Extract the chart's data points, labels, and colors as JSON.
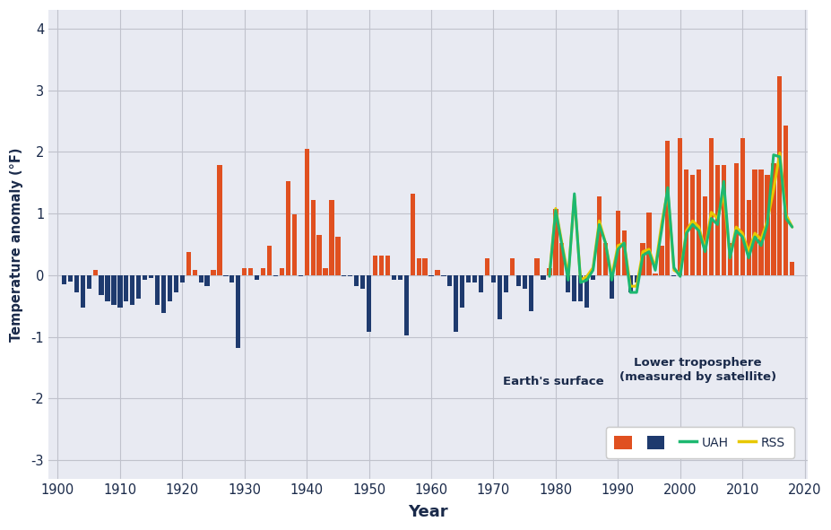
{
  "ylabel": "Temperature anomaly (°F)",
  "xlabel": "Year",
  "plot_bg_color": "#e8eaf2",
  "fig_bg_color": "#ffffff",
  "bar_color_pos": "#e05020",
  "bar_color_neg": "#1e3a6e",
  "uah_color": "#1db870",
  "rss_color": "#e8c800",
  "ylim": [
    -3.3,
    4.3
  ],
  "xlim": [
    1898.5,
    2020.5
  ],
  "yticks": [
    -3,
    -2,
    -1,
    0,
    1,
    2,
    3,
    4
  ],
  "xticks": [
    1900,
    1910,
    1920,
    1930,
    1940,
    1950,
    1960,
    1970,
    1980,
    1990,
    2000,
    2010,
    2020
  ],
  "surface_years": [
    1901,
    1902,
    1903,
    1904,
    1905,
    1906,
    1907,
    1908,
    1909,
    1910,
    1911,
    1912,
    1913,
    1914,
    1915,
    1916,
    1917,
    1918,
    1919,
    1920,
    1921,
    1922,
    1923,
    1924,
    1925,
    1926,
    1927,
    1928,
    1929,
    1930,
    1931,
    1932,
    1933,
    1934,
    1935,
    1936,
    1937,
    1938,
    1939,
    1940,
    1941,
    1942,
    1943,
    1944,
    1945,
    1946,
    1947,
    1948,
    1949,
    1950,
    1951,
    1952,
    1953,
    1954,
    1955,
    1956,
    1957,
    1958,
    1959,
    1960,
    1961,
    1962,
    1963,
    1964,
    1965,
    1966,
    1967,
    1968,
    1969,
    1970,
    1971,
    1972,
    1973,
    1974,
    1975,
    1976,
    1977,
    1978,
    1979,
    1980,
    1981,
    1982,
    1983,
    1984,
    1985,
    1986,
    1987,
    1988,
    1989,
    1990,
    1991,
    1992,
    1993,
    1994,
    1995,
    1996,
    1997,
    1998,
    1999,
    2000,
    2001,
    2002,
    2003,
    2004,
    2005,
    2006,
    2007,
    2008,
    2009,
    2010,
    2011,
    2012,
    2013,
    2014,
    2015,
    2016,
    2017,
    2018
  ],
  "surface_values": [
    -0.15,
    -0.1,
    -0.28,
    -0.52,
    -0.22,
    0.08,
    -0.32,
    -0.42,
    -0.48,
    -0.52,
    -0.42,
    -0.48,
    -0.38,
    -0.08,
    -0.05,
    -0.48,
    -0.62,
    -0.42,
    -0.28,
    -0.12,
    0.38,
    0.08,
    -0.12,
    -0.18,
    0.08,
    1.78,
    -0.02,
    -0.12,
    -1.18,
    0.12,
    0.12,
    -0.08,
    0.12,
    0.48,
    -0.02,
    0.12,
    1.52,
    0.98,
    -0.02,
    2.05,
    1.22,
    0.65,
    0.12,
    1.22,
    0.62,
    -0.02,
    -0.02,
    -0.18,
    -0.22,
    -0.92,
    0.32,
    0.32,
    0.32,
    -0.08,
    -0.08,
    -0.98,
    1.32,
    0.28,
    0.28,
    -0.02,
    0.08,
    -0.02,
    -0.18,
    -0.92,
    -0.52,
    -0.12,
    -0.12,
    -0.28,
    0.28,
    -0.12,
    -0.72,
    -0.28,
    0.28,
    -0.18,
    -0.22,
    -0.58,
    0.28,
    -0.08,
    0.12,
    1.08,
    0.52,
    -0.28,
    -0.42,
    -0.42,
    -0.52,
    -0.08,
    1.28,
    0.52,
    -0.38,
    1.05,
    0.72,
    -0.28,
    -0.12,
    0.52,
    1.02,
    0.02,
    0.48,
    2.18,
    -0.02,
    2.22,
    1.72,
    1.62,
    1.72,
    1.28,
    2.22,
    1.78,
    1.78,
    0.52,
    1.82,
    2.22,
    1.22,
    1.72,
    1.72,
    1.62,
    1.82,
    3.22,
    2.42,
    0.22
  ],
  "uah_years": [
    1979,
    1980,
    1981,
    1982,
    1983,
    1984,
    1985,
    1986,
    1987,
    1988,
    1989,
    1990,
    1991,
    1992,
    1993,
    1994,
    1995,
    1996,
    1997,
    1998,
    1999,
    2000,
    2001,
    2002,
    2003,
    2004,
    2005,
    2006,
    2007,
    2008,
    2009,
    2010,
    2011,
    2012,
    2013,
    2014,
    2015,
    2016,
    2017,
    2018
  ],
  "uah_values": [
    -0.02,
    1.05,
    0.48,
    -0.08,
    1.32,
    -0.12,
    -0.08,
    0.08,
    0.82,
    0.52,
    -0.08,
    0.42,
    0.52,
    -0.28,
    -0.28,
    0.32,
    0.38,
    0.08,
    0.72,
    1.42,
    0.12,
    -0.02,
    0.68,
    0.82,
    0.72,
    0.38,
    0.92,
    0.82,
    1.52,
    0.28,
    0.72,
    0.62,
    0.28,
    0.62,
    0.48,
    0.82,
    1.95,
    1.92,
    0.92,
    0.78
  ],
  "rss_years": [
    1979,
    1980,
    1981,
    1982,
    1983,
    1984,
    1985,
    1986,
    1987,
    1988,
    1989,
    1990,
    1991,
    1992,
    1993,
    1994,
    1995,
    1996,
    1997,
    1998,
    1999,
    2000,
    2001,
    2002,
    2003,
    2004,
    2005,
    2006,
    2007,
    2008,
    2009,
    2010,
    2011,
    2012,
    2013,
    2014,
    2015,
    2016,
    2017,
    2018
  ],
  "rss_values": [
    0.02,
    1.08,
    0.52,
    -0.02,
    1.28,
    -0.08,
    -0.02,
    0.12,
    0.88,
    0.52,
    -0.02,
    0.48,
    0.52,
    -0.18,
    -0.18,
    0.38,
    0.42,
    0.12,
    0.82,
    1.38,
    0.08,
    0.02,
    0.72,
    0.88,
    0.78,
    0.42,
    1.02,
    0.92,
    1.32,
    0.28,
    0.78,
    0.68,
    0.38,
    0.68,
    0.58,
    0.88,
    1.38,
    1.98,
    0.98,
    0.78
  ]
}
